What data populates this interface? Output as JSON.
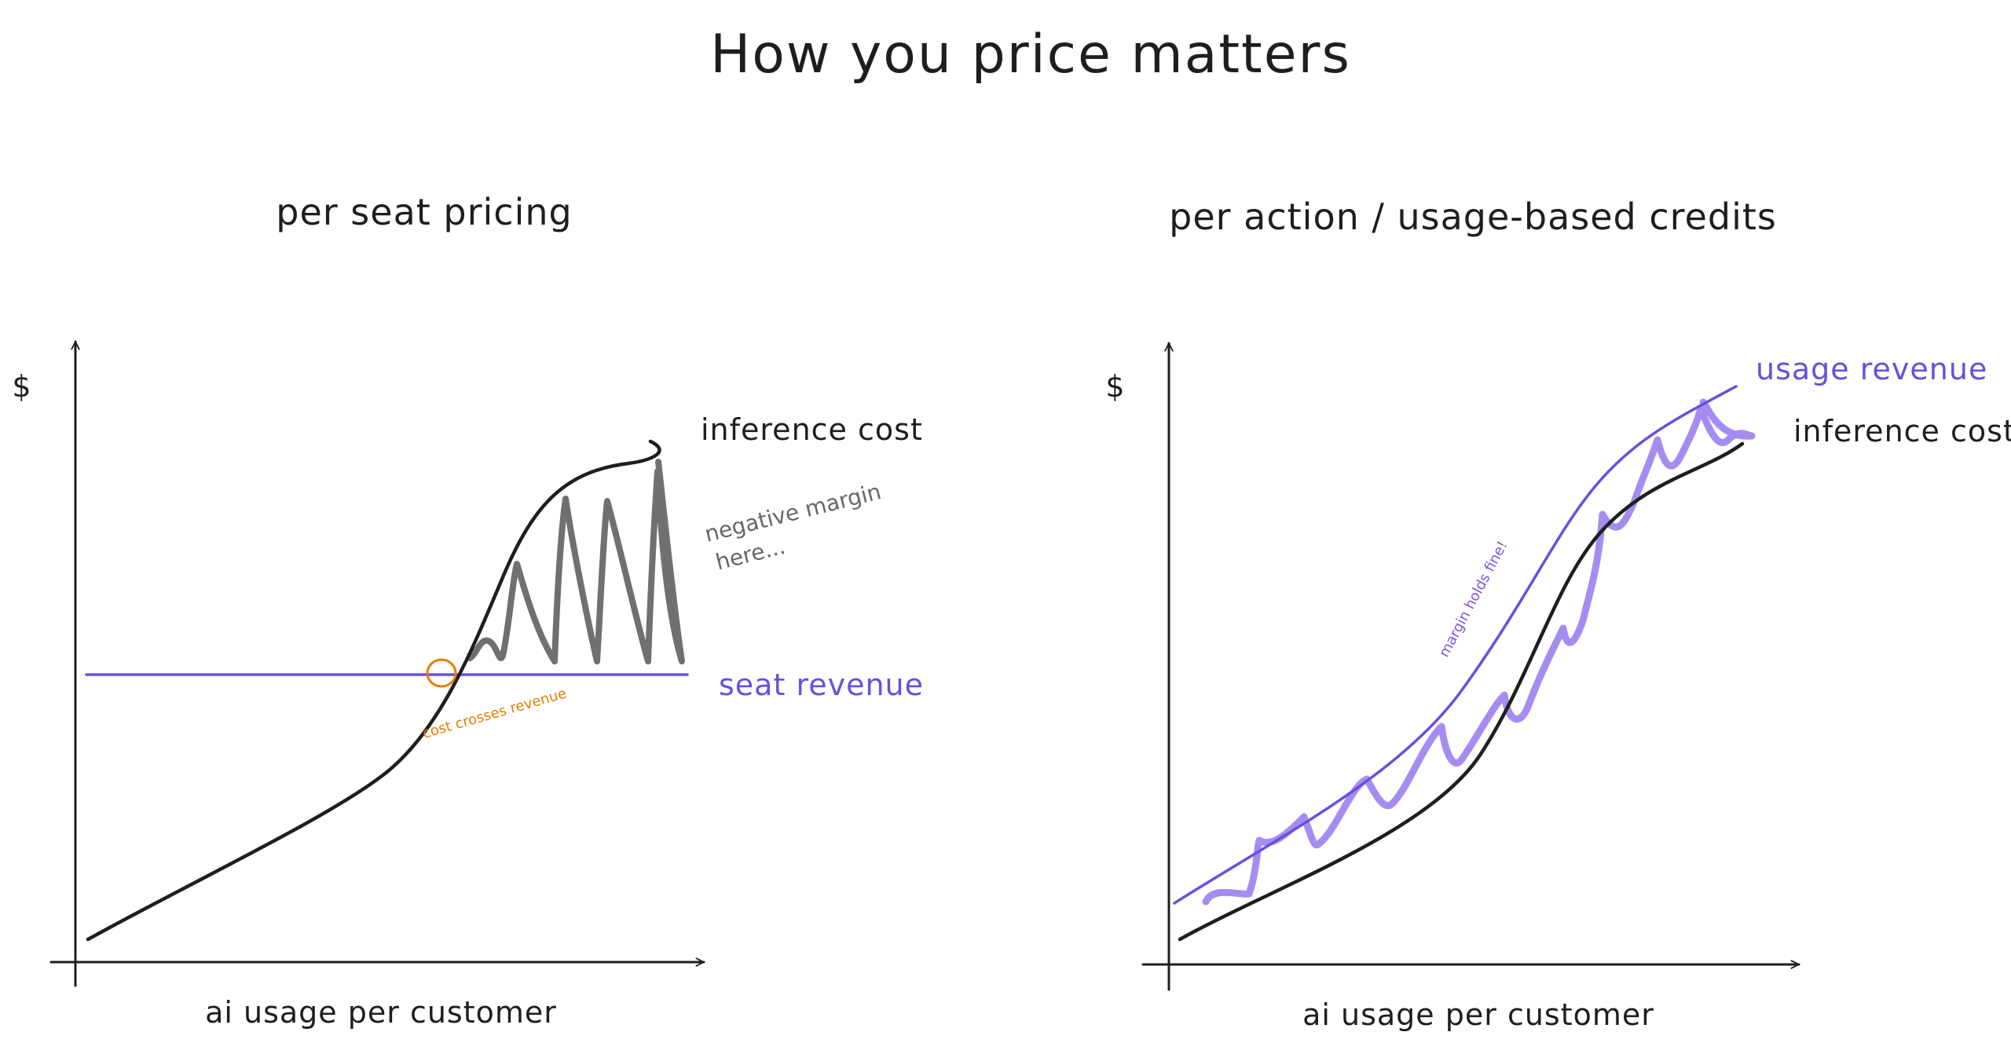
{
  "title": "How you price matters",
  "left_chart": {
    "title": "per seat pricing",
    "y_axis_label": "$",
    "x_axis_label": "ai usage per customer",
    "series": {
      "cost_label": "inference cost",
      "revenue_label": "seat revenue"
    },
    "annotations": {
      "negative_margin_line1": "negative margin",
      "negative_margin_line2": "here...",
      "crossing": "cost crosses revenue"
    },
    "colors": {
      "cost": "#1e1e1e",
      "revenue": "#6a4ee0",
      "negative_margin": "#707070",
      "crossing": "#e67e00"
    }
  },
  "right_chart": {
    "title": "per action / usage-based credits",
    "y_axis_label": "$",
    "x_axis_label": "ai usage per customer",
    "series": {
      "revenue_label": "usage revenue",
      "cost_label": "inference cost"
    },
    "annotations": {
      "margin": "margin holds fine!"
    },
    "colors": {
      "cost": "#1e1e1e",
      "revenue": "#6a4ee0",
      "margin_fill": "#a58cf0"
    }
  }
}
